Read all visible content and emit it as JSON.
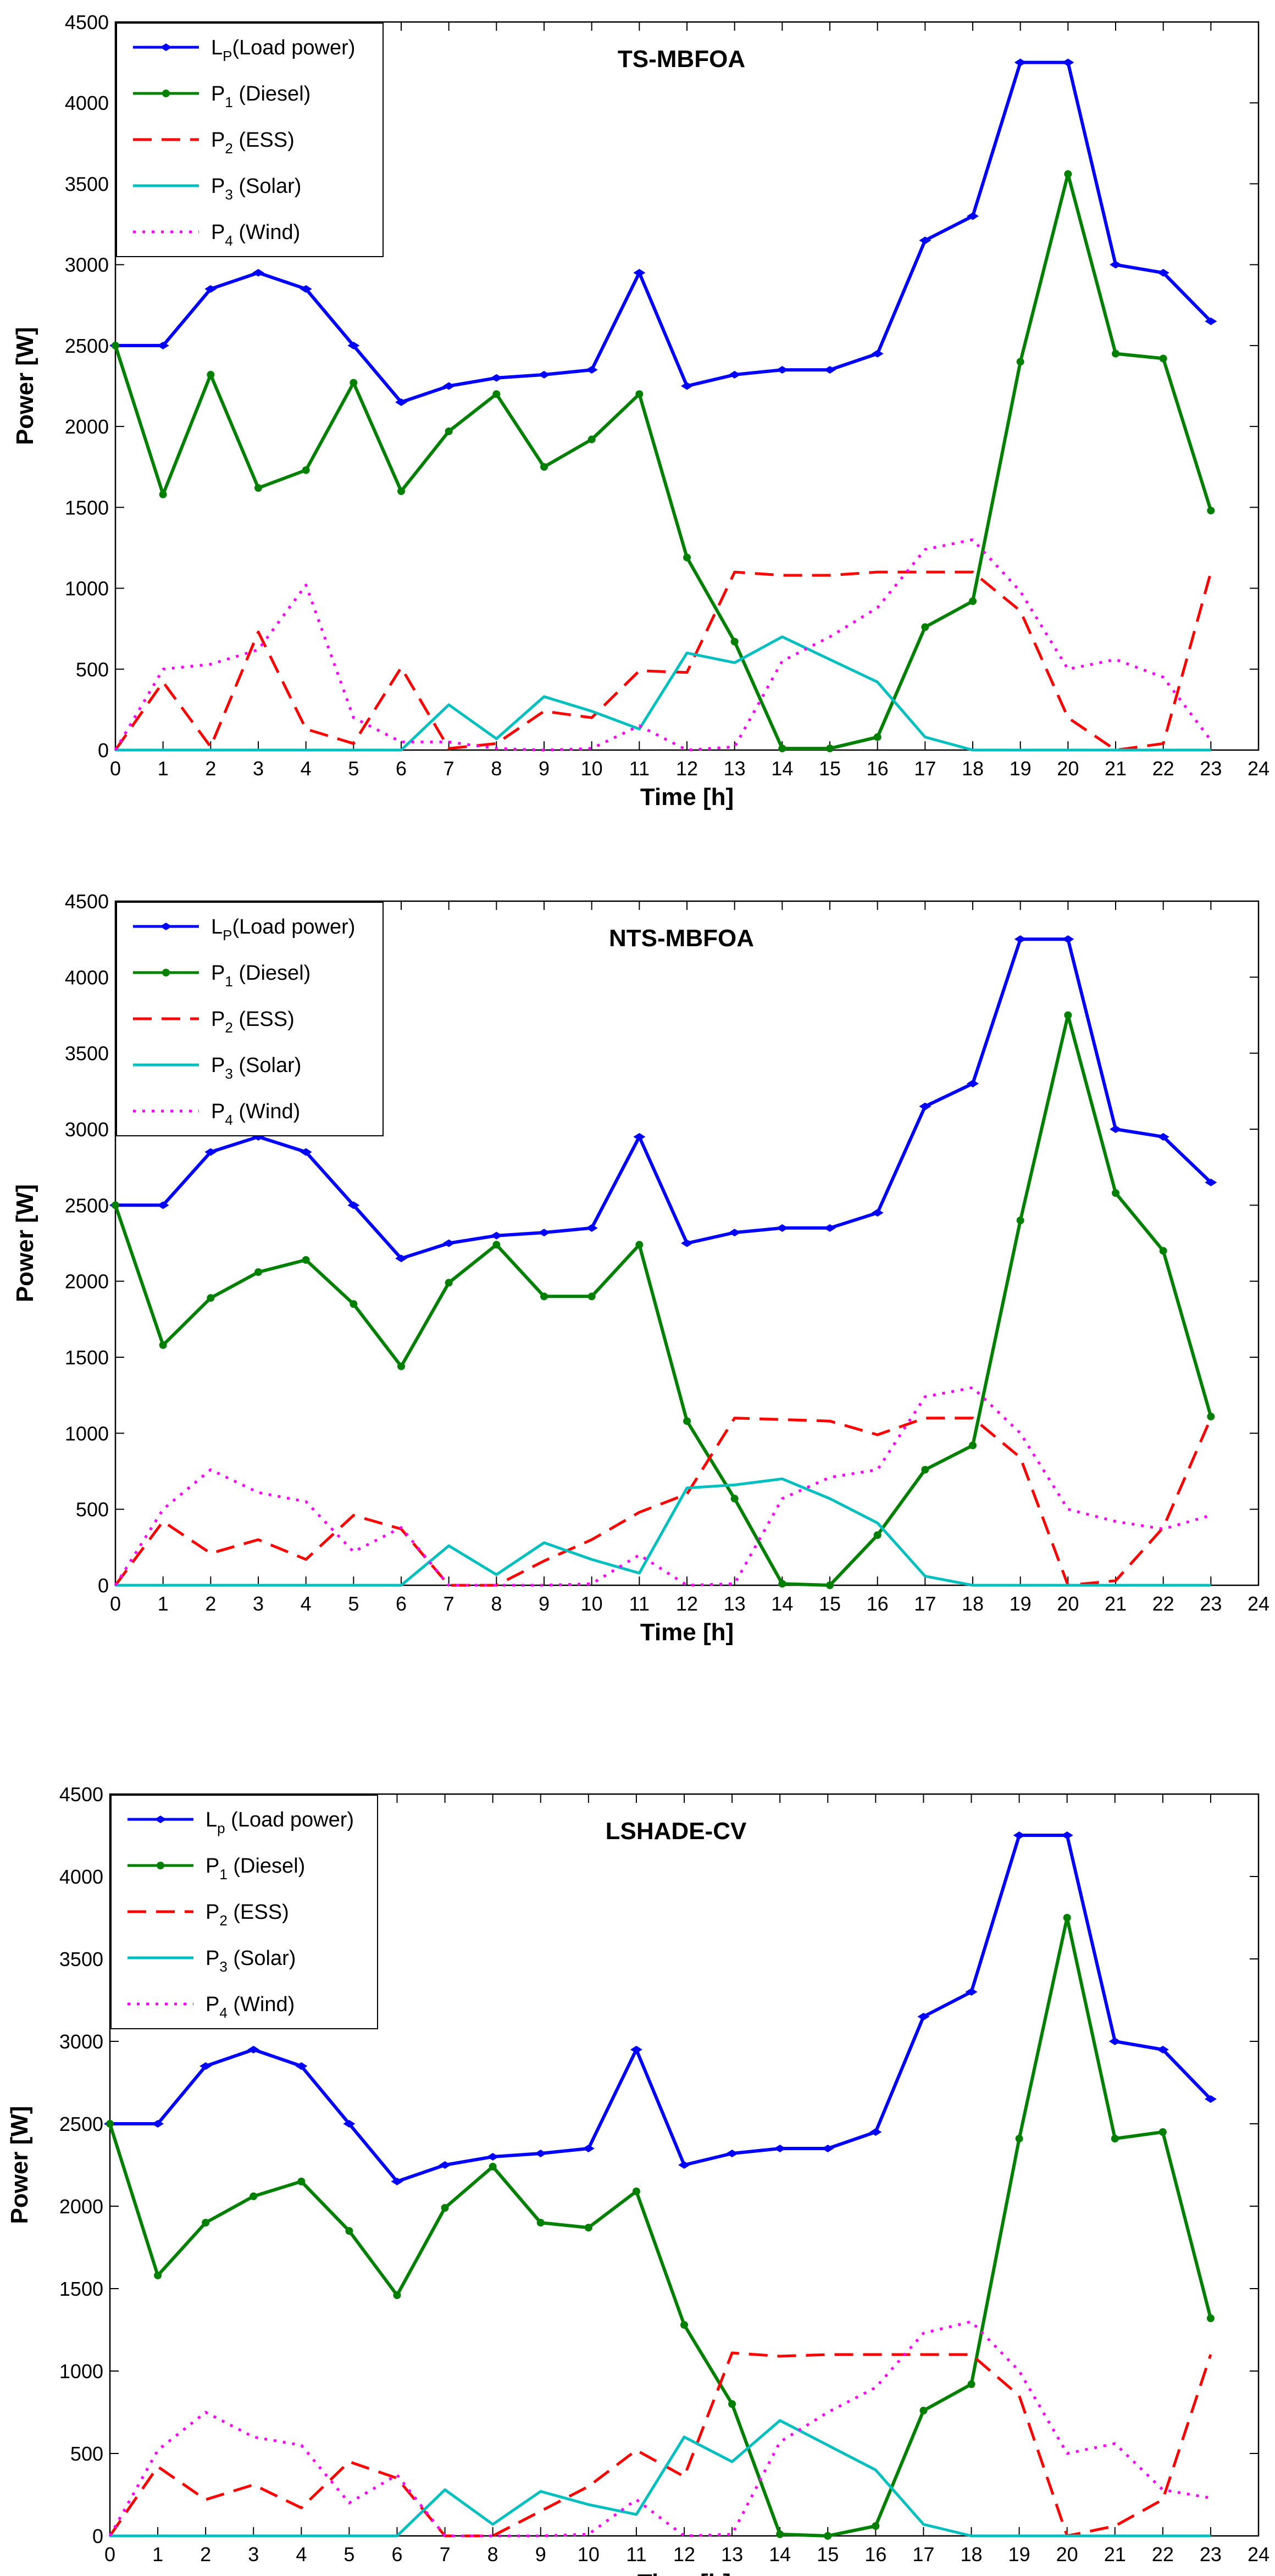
{
  "chart_data": [
    {
      "type": "line",
      "title": "TS-MBFOA",
      "xlabel": "Time [h]",
      "ylabel": "Power [W]",
      "xlim": [
        0,
        24
      ],
      "ylim": [
        0,
        4500
      ],
      "xticks": [
        0,
        1,
        2,
        3,
        4,
        5,
        6,
        7,
        8,
        9,
        10,
        11,
        12,
        13,
        14,
        15,
        16,
        17,
        18,
        19,
        20,
        21,
        22,
        23,
        24
      ],
      "yticks": [
        0,
        500,
        1000,
        1500,
        2000,
        2500,
        3000,
        3500,
        4000,
        4500
      ],
      "legend_position": "top-left",
      "x": [
        0,
        1,
        2,
        3,
        4,
        5,
        6,
        7,
        8,
        9,
        10,
        11,
        12,
        13,
        14,
        15,
        16,
        17,
        18,
        19,
        20,
        21,
        22,
        23
      ],
      "series": [
        {
          "name": "Load power",
          "symbol": "L",
          "subscript": "P",
          "suffix": "(Load power)",
          "color": "#0000ff",
          "style": "solid-diamond",
          "values": [
            2500,
            2500,
            2850,
            2950,
            2850,
            2500,
            2150,
            2250,
            2300,
            2320,
            2350,
            2950,
            2250,
            2320,
            2350,
            2350,
            2450,
            3150,
            3300,
            4250,
            4250,
            3000,
            2950,
            2650
          ]
        },
        {
          "name": "Diesel",
          "symbol": "P",
          "subscript": "1",
          "suffix": " (Diesel)",
          "color": "#008000",
          "style": "solid-dot",
          "values": [
            2500,
            1580,
            2320,
            1620,
            1730,
            2270,
            1600,
            1970,
            2200,
            1750,
            1920,
            2200,
            1190,
            670,
            10,
            10,
            80,
            760,
            920,
            2400,
            3560,
            2450,
            2420,
            1480
          ]
        },
        {
          "name": "ESS",
          "symbol": "P",
          "subscript": "2",
          "suffix": " (ESS)",
          "color": "#ff0000",
          "style": "dashed",
          "values": [
            0,
            420,
            20,
            730,
            130,
            40,
            510,
            10,
            40,
            240,
            200,
            490,
            480,
            1100,
            1080,
            1080,
            1100,
            1100,
            1100,
            860,
            200,
            0,
            40,
            1100
          ]
        },
        {
          "name": "Solar",
          "symbol": "P",
          "subscript": "3",
          "suffix": " (Solar)",
          "color": "#00bfbf",
          "style": "solid",
          "values": [
            0,
            0,
            0,
            0,
            0,
            0,
            0,
            280,
            70,
            330,
            240,
            130,
            600,
            540,
            700,
            560,
            420,
            80,
            0,
            0,
            0,
            0,
            0,
            0
          ]
        },
        {
          "name": "Wind",
          "symbol": "P",
          "subscript": "4",
          "suffix": " (Wind)",
          "color": "#ff00ff",
          "style": "dotted",
          "values": [
            0,
            500,
            530,
            620,
            1020,
            200,
            50,
            50,
            10,
            0,
            10,
            150,
            0,
            20,
            550,
            700,
            880,
            1240,
            1300,
            980,
            500,
            560,
            450,
            60
          ]
        }
      ]
    },
    {
      "type": "line",
      "title": "NTS-MBFOA",
      "xlabel": "Time [h]",
      "ylabel": "Power [W]",
      "xlim": [
        0,
        24
      ],
      "ylim": [
        0,
        4500
      ],
      "xticks": [
        0,
        1,
        2,
        3,
        4,
        5,
        6,
        7,
        8,
        9,
        10,
        11,
        12,
        13,
        14,
        15,
        16,
        17,
        18,
        19,
        20,
        21,
        22,
        23,
        24
      ],
      "yticks": [
        0,
        500,
        1000,
        1500,
        2000,
        2500,
        3000,
        3500,
        4000,
        4500
      ],
      "legend_position": "top-left",
      "x": [
        0,
        1,
        2,
        3,
        4,
        5,
        6,
        7,
        8,
        9,
        10,
        11,
        12,
        13,
        14,
        15,
        16,
        17,
        18,
        19,
        20,
        21,
        22,
        23
      ],
      "series": [
        {
          "name": "Load power",
          "symbol": "L",
          "subscript": "P",
          "suffix": "(Load power)",
          "color": "#0000ff",
          "style": "solid-diamond",
          "values": [
            2500,
            2500,
            2850,
            2950,
            2850,
            2500,
            2150,
            2250,
            2300,
            2320,
            2350,
            2950,
            2250,
            2320,
            2350,
            2350,
            2450,
            3150,
            3300,
            4250,
            4250,
            3000,
            2950,
            2650
          ]
        },
        {
          "name": "Diesel",
          "symbol": "P",
          "subscript": "1",
          "suffix": " (Diesel)",
          "color": "#008000",
          "style": "solid-dot",
          "values": [
            2500,
            1580,
            1890,
            2060,
            2140,
            1850,
            1440,
            1990,
            2240,
            1900,
            1900,
            2240,
            1080,
            570,
            10,
            0,
            330,
            760,
            920,
            2400,
            3750,
            2580,
            2200,
            1110
          ]
        },
        {
          "name": "ESS",
          "symbol": "P",
          "subscript": "2",
          "suffix": " (ESS)",
          "color": "#ff0000",
          "style": "dashed",
          "values": [
            0,
            420,
            210,
            300,
            170,
            460,
            370,
            0,
            0,
            160,
            300,
            480,
            600,
            1100,
            1090,
            1080,
            990,
            1100,
            1100,
            840,
            0,
            30,
            380,
            1100
          ]
        },
        {
          "name": "Solar",
          "symbol": "P",
          "subscript": "3",
          "suffix": " (Solar)",
          "color": "#00bfbf",
          "style": "solid",
          "values": [
            0,
            0,
            0,
            0,
            0,
            0,
            0,
            260,
            70,
            280,
            170,
            80,
            640,
            660,
            700,
            570,
            410,
            60,
            0,
            0,
            0,
            0,
            0,
            0
          ]
        },
        {
          "name": "Wind",
          "symbol": "P",
          "subscript": "4",
          "suffix": " (Wind)",
          "color": "#ff00ff",
          "style": "dotted",
          "values": [
            0,
            500,
            760,
            610,
            550,
            220,
            380,
            0,
            0,
            0,
            10,
            200,
            0,
            10,
            570,
            710,
            760,
            1240,
            1300,
            1000,
            500,
            420,
            370,
            460
          ]
        }
      ]
    },
    {
      "type": "line",
      "title": "LSHADE-CV",
      "xlabel": "Time [h]",
      "ylabel": "Power [W]",
      "xlim": [
        0,
        24
      ],
      "ylim": [
        0,
        4500
      ],
      "xticks": [
        0,
        1,
        2,
        3,
        4,
        5,
        6,
        7,
        8,
        9,
        10,
        11,
        12,
        13,
        14,
        15,
        16,
        17,
        18,
        19,
        20,
        21,
        22,
        23,
        24
      ],
      "yticks": [
        0,
        500,
        1000,
        1500,
        2000,
        2500,
        3000,
        3500,
        4000,
        4500
      ],
      "legend_position": "top-left",
      "x": [
        0,
        1,
        2,
        3,
        4,
        5,
        6,
        7,
        8,
        9,
        10,
        11,
        12,
        13,
        14,
        15,
        16,
        17,
        18,
        19,
        20,
        21,
        22,
        23
      ],
      "series": [
        {
          "name": "Load power",
          "symbol": "L",
          "subscript": "p",
          "suffix": " (Load power)",
          "color": "#0000ff",
          "style": "solid-diamond",
          "values": [
            2500,
            2500,
            2850,
            2950,
            2850,
            2500,
            2150,
            2250,
            2300,
            2320,
            2350,
            2950,
            2250,
            2320,
            2350,
            2350,
            2450,
            3150,
            3300,
            4250,
            4250,
            3000,
            2950,
            2650
          ]
        },
        {
          "name": "Diesel",
          "symbol": "P",
          "subscript": "1",
          "suffix": " (Diesel)",
          "color": "#008000",
          "style": "solid-dot",
          "values": [
            2500,
            1580,
            1900,
            2060,
            2150,
            1850,
            1460,
            1990,
            2240,
            1900,
            1870,
            2090,
            1280,
            800,
            10,
            0,
            60,
            760,
            920,
            2410,
            3750,
            2410,
            2450,
            1320
          ]
        },
        {
          "name": "ESS",
          "symbol": "P",
          "subscript": "2",
          "suffix": " (ESS)",
          "color": "#ff0000",
          "style": "dashed",
          "values": [
            0,
            420,
            220,
            310,
            170,
            450,
            350,
            0,
            0,
            150,
            300,
            520,
            360,
            1110,
            1090,
            1100,
            1100,
            1100,
            1100,
            850,
            0,
            60,
            220,
            1100
          ]
        },
        {
          "name": "Solar",
          "symbol": "P",
          "subscript": "3",
          "suffix": " (Solar)",
          "color": "#00bfbf",
          "style": "solid",
          "values": [
            0,
            0,
            0,
            0,
            0,
            0,
            0,
            280,
            70,
            270,
            190,
            130,
            600,
            450,
            700,
            550,
            400,
            70,
            0,
            0,
            0,
            0,
            0,
            0
          ]
        },
        {
          "name": "Wind",
          "symbol": "P",
          "subscript": "4",
          "suffix": " (Wind)",
          "color": "#ff00ff",
          "style": "dotted",
          "values": [
            0,
            520,
            750,
            600,
            550,
            200,
            370,
            0,
            0,
            0,
            10,
            220,
            0,
            10,
            570,
            750,
            900,
            1230,
            1300,
            1000,
            500,
            560,
            280,
            230
          ]
        }
      ]
    }
  ]
}
